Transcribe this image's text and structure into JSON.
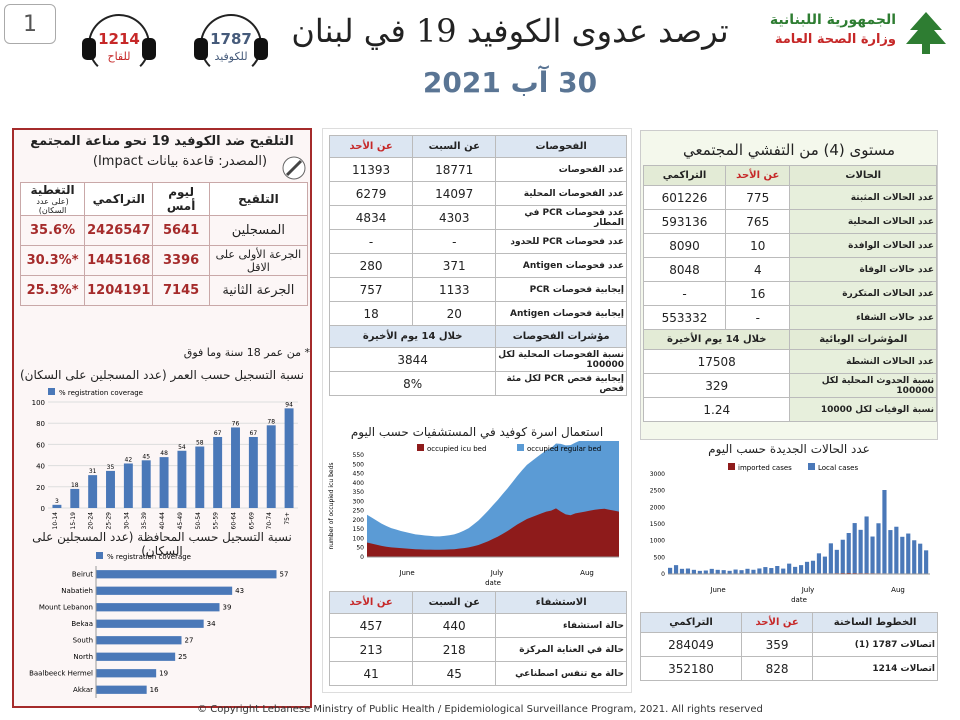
{
  "page_number": "1",
  "header": {
    "title": "ترصد عدوى الكوفيد 19 في لبنان",
    "date": "30 آب 2021",
    "hotline_covid": {
      "number": "1787",
      "label": "للكوفيد"
    },
    "hotline_vaccine": {
      "number": "1214",
      "label": "للقاح"
    },
    "logo_line1": "الجمهورية اللبنانية",
    "logo_line2": "وزارة الصحة العامة"
  },
  "vaccination": {
    "title": "التلقيح ضد الكوفيد 19  نحو مناعة المجتمع",
    "source": "(المصدر: قاعدة بيانات Impact)",
    "headers": {
      "vaccination": "التلقيح",
      "yesterday": "ليوم أمس",
      "cumulative": "التراكمي",
      "coverage": "التغطية",
      "coverage_sub": "(على عدد السكان)"
    },
    "rows": [
      {
        "label": "المسجلين",
        "yesterday": "5641",
        "cumulative": "2426547",
        "coverage": "35.6%"
      },
      {
        "label": "الجرعة الأولى على الاقل",
        "yesterday": "3396",
        "cumulative": "1445168",
        "coverage": "*30.3%"
      },
      {
        "label": "الجرعة الثانية",
        "yesterday": "7145",
        "cumulative": "1204191",
        "coverage": "*25.3%"
      }
    ],
    "note": "* من عمر 18 سنة وما فوق"
  },
  "tests": {
    "headers": {
      "label": "الفحوصات",
      "saturday": "عن السبت",
      "sunday": "عن الأحد"
    },
    "rows": [
      {
        "label": "عدد الفحوصات",
        "saturday": "18771",
        "sunday": "11393"
      },
      {
        "label": "عدد الفحوصات المحلية",
        "saturday": "14097",
        "sunday": "6279"
      },
      {
        "label": "عدد فحوصات PCR في المطار",
        "saturday": "4303",
        "sunday": "4834"
      },
      {
        "label": "عدد فحوصات PCR للحدود",
        "saturday": "-",
        "sunday": "-"
      },
      {
        "label": "عدد فحوصات Antigen",
        "saturday": "371",
        "sunday": "280"
      },
      {
        "label": "إيجابية فحوصات PCR",
        "saturday": "1133",
        "sunday": "757"
      },
      {
        "label": "إيجابية فحوصات Antigen",
        "saturday": "20",
        "sunday": "18"
      }
    ],
    "indicators_header": "مؤشرات الفحوصات",
    "indicators_period": "خلال 14 يوم الأخيرة",
    "indicators": [
      {
        "label": "نسبة الفحوصات المحلية لكل 100000",
        "value": "3844"
      },
      {
        "label": "إيجابية فحص PCR لكل مئة فحص",
        "value": "8%"
      }
    ]
  },
  "hospital": {
    "headers": {
      "label": "الاستشفاء",
      "saturday": "عن السبت",
      "sunday": "عن الأحد"
    },
    "rows": [
      {
        "label": "حالة استشفاء",
        "saturday": "440",
        "sunday": "457"
      },
      {
        "label": "حالة في العناية المركزة",
        "saturday": "218",
        "sunday": "213"
      },
      {
        "label": "حالة مع تنفس اصطناعي",
        "saturday": "45",
        "sunday": "41"
      }
    ]
  },
  "community": {
    "title": "مستوى (4) من التفشي المجتمعي",
    "headers": {
      "label": "الحالات",
      "sunday": "عن الأحد",
      "cumulative": "التراكمي"
    },
    "rows": [
      {
        "label": "عدد الحالات المثبتة",
        "sunday": "775",
        "cumulative": "601226"
      },
      {
        "label": "عدد الحالات المحلية",
        "sunday": "765",
        "cumulative": "593136"
      },
      {
        "label": "عدد الحالات الوافدة",
        "sunday": "10",
        "cumulative": "8090"
      },
      {
        "label": "عدد حالات الوفاة",
        "sunday": "4",
        "cumulative": "8048"
      },
      {
        "label": "عدد الحالات المتكررة",
        "sunday": "16",
        "cumulative": "-"
      },
      {
        "label": "عدد حالات الشفاء",
        "sunday": "-",
        "cumulative": "553332"
      }
    ],
    "indicators_header": "المؤشرات الوبائية",
    "indicators_period": "خلال 14 يوم الأخيرة",
    "indicators": [
      {
        "label": "عدد الحالات النشطة",
        "value": "17508"
      },
      {
        "label": "نسبة الحدوث المحلية لكل 100000",
        "value": "329"
      },
      {
        "label": "نسبة الوفيات لكل 10000",
        "value": "1.24"
      }
    ]
  },
  "hotlines": {
    "headers": {
      "label": "الخطوط الساخنة",
      "sunday": "عن الأحد",
      "cumulative": "التراكمي"
    },
    "rows": [
      {
        "label": "اتصالات 1787 (1)",
        "sunday": "359",
        "cumulative": "284049"
      },
      {
        "label": "اتصالات 1214",
        "sunday": "828",
        "cumulative": "352180"
      }
    ]
  },
  "footer": "© Copyright Lebanese Ministry of Public Health / Epidemiological Surveillance Program, 2021. All rights reserved",
  "chart_data": [
    {
      "type": "bar",
      "title": "نسبة التسجيل حسب العمر (عدد المسجلين على السكان)",
      "legend": "% registration coverage",
      "categories": [
        "10-14",
        "15-19",
        "20-24",
        "25-29",
        "30-34",
        "35-39",
        "40-44",
        "45-49",
        "50-54",
        "55-59",
        "60-64",
        "65-69",
        "70-74",
        "75+"
      ],
      "values": [
        3,
        18,
        31,
        35,
        42,
        45,
        48,
        54,
        58,
        67,
        76,
        67,
        78,
        94
      ],
      "ylim": [
        0,
        100
      ],
      "yticks": [
        "0",
        "20",
        "40",
        "60",
        "80",
        "100"
      ],
      "color": "#4a78b8"
    },
    {
      "type": "bar",
      "orientation": "horizontal",
      "title": "نسبة التسجيل حسب المحافظة (عدد المسجلين على السكان)",
      "legend": "% registration coverage",
      "categories": [
        "Beirut",
        "Nabatieh",
        "Mount Lebanon",
        "Bekaa",
        "South",
        "North",
        "Baalbeeck Hermel",
        "Akkar"
      ],
      "values": [
        57,
        43,
        39,
        34,
        27,
        25,
        19,
        16
      ],
      "xlim": [
        0,
        60
      ],
      "color": "#4a78b8"
    },
    {
      "type": "area",
      "title": "استعمال اسرة كوفيد في المستشفيات حسب اليوم",
      "xlabel": "date",
      "ylabel": "number of occupied icu beds",
      "ylim": [
        0,
        550
      ],
      "yticks": [
        "0",
        "50",
        "100",
        "150",
        "200",
        "250",
        "300",
        "350",
        "400",
        "450",
        "500",
        "550"
      ],
      "month_labels": [
        "June",
        "July",
        "Aug"
      ],
      "series": [
        {
          "name": "occupied icu bed",
          "color": "#8e1b1b",
          "values": [
            78,
            72,
            66,
            60,
            55,
            52,
            50,
            48,
            46,
            44,
            42,
            41,
            40,
            40,
            39,
            39,
            40,
            41,
            42,
            45,
            48,
            52,
            58,
            65,
            75,
            85,
            98,
            110,
            125,
            140,
            158,
            175,
            190,
            205,
            215,
            225,
            235,
            245,
            250,
            262,
            245,
            230,
            225,
            235,
            240,
            245,
            250,
            255,
            258,
            260,
            255,
            250,
            245
          ]
        },
        {
          "name": "occupied regular bed",
          "color": "#5b9bd5",
          "values": [
            150,
            140,
            130,
            120,
            112,
            104,
            98,
            92,
            88,
            84,
            80,
            78,
            76,
            74,
            72,
            72,
            74,
            76,
            80,
            86,
            94,
            104,
            118,
            132,
            148,
            165,
            182,
            198,
            215,
            230,
            245,
            262,
            278,
            292,
            302,
            312,
            322,
            330,
            338,
            350,
            365,
            372,
            378,
            382,
            388,
            394,
            398,
            402,
            406,
            410,
            412,
            414,
            415
          ]
        }
      ]
    },
    {
      "type": "bar",
      "stacked": true,
      "title": "عدد الحالات الجديدة حسب اليوم",
      "xlabel": "date",
      "ylim": [
        0,
        3000
      ],
      "yticks": [
        "0",
        "500",
        "1000",
        "1500",
        "2000",
        "2500",
        "3000"
      ],
      "month_labels": [
        "June",
        "July",
        "Aug"
      ],
      "series": [
        {
          "name": "imported cases",
          "color": "#8e1b1b",
          "values": [
            5,
            6,
            5,
            4,
            5,
            4,
            5,
            4,
            5,
            6,
            5,
            4,
            5,
            6,
            7,
            6,
            8,
            9,
            10,
            12,
            11,
            14,
            16,
            15,
            18,
            20,
            22,
            20,
            25,
            28,
            30,
            28,
            25,
            26,
            24,
            22,
            20,
            18,
            18,
            16,
            14,
            12,
            10,
            10
          ]
        },
        {
          "name": "Local cases",
          "color": "#4a78b8",
          "values": [
            180,
            260,
            150,
            160,
            120,
            90,
            100,
            150,
            120,
            110,
            90,
            130,
            110,
            150,
            120,
            160,
            200,
            170,
            230,
            150,
            300,
            200,
            250,
            350,
            380,
            600,
            500,
            900,
            700,
            1000,
            1200,
            1500,
            1300,
            1700,
            1100,
            1500,
            2500,
            1300,
            1400,
            1100,
            1200,
            1000,
            900,
            700
          ]
        }
      ]
    }
  ]
}
